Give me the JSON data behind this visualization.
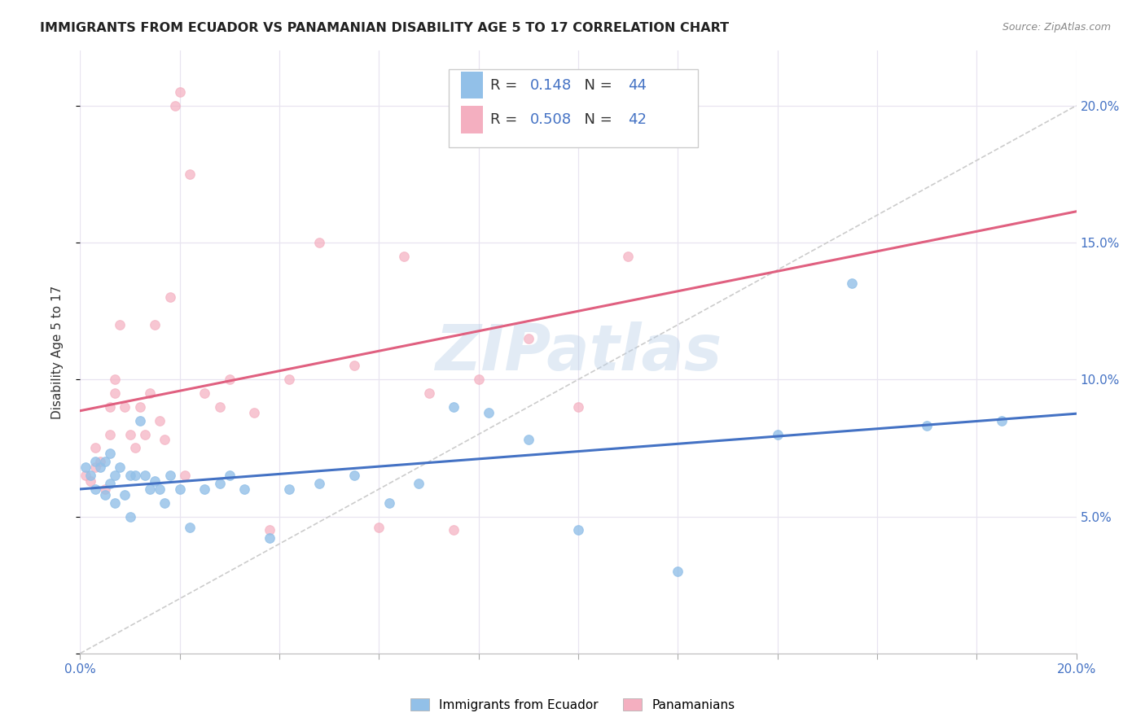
{
  "title": "IMMIGRANTS FROM ECUADOR VS PANAMANIAN DISABILITY AGE 5 TO 17 CORRELATION CHART",
  "source": "Source: ZipAtlas.com",
  "ylabel": "Disability Age 5 to 17",
  "xlim": [
    0.0,
    0.2
  ],
  "ylim": [
    0.0,
    0.22
  ],
  "xticks": [
    0.0,
    0.02,
    0.04,
    0.06,
    0.08,
    0.1,
    0.12,
    0.14,
    0.16,
    0.18,
    0.2
  ],
  "yticks": [
    0.0,
    0.05,
    0.1,
    0.15,
    0.2
  ],
  "blue_R": 0.148,
  "blue_N": 44,
  "pink_R": 0.508,
  "pink_N": 42,
  "blue_color": "#92c0e8",
  "pink_color": "#f4afc0",
  "blue_line_color": "#4472c4",
  "pink_line_color": "#e06080",
  "diagonal_color": "#cccccc",
  "background_color": "#ffffff",
  "grid_color": "#e8e4f0",
  "watermark": "ZIPatlas",
  "blue_scatter_x": [
    0.001,
    0.002,
    0.003,
    0.003,
    0.004,
    0.005,
    0.005,
    0.006,
    0.006,
    0.007,
    0.007,
    0.008,
    0.009,
    0.01,
    0.01,
    0.011,
    0.012,
    0.013,
    0.014,
    0.015,
    0.016,
    0.017,
    0.018,
    0.02,
    0.022,
    0.025,
    0.028,
    0.03,
    0.033,
    0.038,
    0.042,
    0.048,
    0.055,
    0.062,
    0.068,
    0.075,
    0.082,
    0.09,
    0.1,
    0.12,
    0.14,
    0.155,
    0.17,
    0.185
  ],
  "blue_scatter_y": [
    0.068,
    0.065,
    0.07,
    0.06,
    0.068,
    0.07,
    0.058,
    0.073,
    0.062,
    0.065,
    0.055,
    0.068,
    0.058,
    0.065,
    0.05,
    0.065,
    0.085,
    0.065,
    0.06,
    0.063,
    0.06,
    0.055,
    0.065,
    0.06,
    0.046,
    0.06,
    0.062,
    0.065,
    0.06,
    0.042,
    0.06,
    0.062,
    0.065,
    0.055,
    0.062,
    0.09,
    0.088,
    0.078,
    0.045,
    0.03,
    0.08,
    0.135,
    0.083,
    0.085
  ],
  "pink_scatter_x": [
    0.001,
    0.002,
    0.003,
    0.003,
    0.004,
    0.005,
    0.006,
    0.006,
    0.007,
    0.007,
    0.008,
    0.009,
    0.01,
    0.011,
    0.012,
    0.013,
    0.014,
    0.015,
    0.016,
    0.017,
    0.018,
    0.019,
    0.02,
    0.021,
    0.022,
    0.025,
    0.028,
    0.03,
    0.035,
    0.038,
    0.042,
    0.048,
    0.055,
    0.06,
    0.065,
    0.07,
    0.075,
    0.08,
    0.09,
    0.1,
    0.11,
    0.12
  ],
  "pink_scatter_y": [
    0.065,
    0.063,
    0.068,
    0.075,
    0.07,
    0.06,
    0.09,
    0.08,
    0.1,
    0.095,
    0.12,
    0.09,
    0.08,
    0.075,
    0.09,
    0.08,
    0.095,
    0.12,
    0.085,
    0.078,
    0.13,
    0.2,
    0.205,
    0.065,
    0.175,
    0.095,
    0.09,
    0.1,
    0.088,
    0.045,
    0.1,
    0.15,
    0.105,
    0.046,
    0.145,
    0.095,
    0.045,
    0.1,
    0.115,
    0.09,
    0.145,
    0.2
  ]
}
